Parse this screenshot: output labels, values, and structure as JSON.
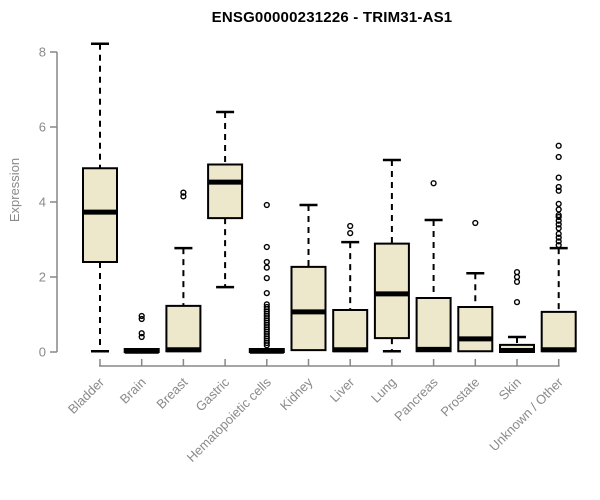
{
  "chart_data": {
    "type": "boxplot",
    "title": "ENSG00000231226 - TRIM31-AS1",
    "ylabel": "Expression",
    "xlabel": "",
    "ylim": [
      0,
      8
    ],
    "yticks": [
      0,
      2,
      4,
      6,
      8
    ],
    "grid": false,
    "legend": false,
    "categories": [
      "Bladder",
      "Brain",
      "Breast",
      "Gastric",
      "Hematopoietic cells",
      "Kidney",
      "Liver",
      "Lung",
      "Pancreas",
      "Prostate",
      "Skin",
      "Unknown / Other"
    ],
    "boxes": [
      {
        "category": "Bladder",
        "low": 0.02,
        "q1": 2.4,
        "median": 3.73,
        "q3": 4.9,
        "high": 8.22,
        "outliers": []
      },
      {
        "category": "Brain",
        "low": 0.0,
        "q1": 0.0,
        "median": 0.02,
        "q3": 0.08,
        "high": 0.1,
        "outliers": [
          0.4,
          0.5,
          0.88,
          0.96
        ]
      },
      {
        "category": "Breast",
        "low": 0.02,
        "q1": 0.02,
        "median": 0.06,
        "q3": 1.23,
        "high": 2.77,
        "outliers": [
          4.15,
          4.25
        ]
      },
      {
        "category": "Gastric",
        "low": 1.73,
        "q1": 3.57,
        "median": 4.53,
        "q3": 5.0,
        "high": 6.4,
        "outliers": []
      },
      {
        "category": "Hematopoietic cells",
        "low": 0.0,
        "q1": 0.0,
        "median": 0.02,
        "q3": 0.08,
        "high": 0.12,
        "outliers": [
          0.18,
          0.24,
          0.3,
          0.36,
          0.42,
          0.48,
          0.54,
          0.6,
          0.66,
          0.72,
          0.78,
          0.84,
          0.9,
          0.96,
          1.02,
          1.08,
          1.14,
          1.2,
          1.27,
          1.57,
          1.97,
          2.25,
          2.4,
          2.8,
          3.92
        ]
      },
      {
        "category": "Kidney",
        "low": 0.02,
        "q1": 0.05,
        "median": 1.07,
        "q3": 2.27,
        "high": 3.92,
        "outliers": []
      },
      {
        "category": "Liver",
        "low": 0.02,
        "q1": 0.02,
        "median": 0.06,
        "q3": 1.12,
        "high": 2.93,
        "outliers": [
          3.17,
          3.36
        ]
      },
      {
        "category": "Lung",
        "low": 0.02,
        "q1": 0.37,
        "median": 1.55,
        "q3": 2.89,
        "high": 5.12,
        "outliers": []
      },
      {
        "category": "Pancreas",
        "low": 0.02,
        "q1": 0.02,
        "median": 0.07,
        "q3": 1.44,
        "high": 3.52,
        "outliers": [
          4.5
        ]
      },
      {
        "category": "Prostate",
        "low": 0.02,
        "q1": 0.02,
        "median": 0.35,
        "q3": 1.2,
        "high": 2.1,
        "outliers": [
          3.44
        ]
      },
      {
        "category": "Skin",
        "low": 0.0,
        "q1": 0.0,
        "median": 0.04,
        "q3": 0.19,
        "high": 0.4,
        "outliers": [
          1.33,
          1.87,
          2.0,
          2.13
        ]
      },
      {
        "category": "Unknown / Other",
        "low": 0.02,
        "q1": 0.02,
        "median": 0.06,
        "q3": 1.07,
        "high": 2.77,
        "outliers": [
          2.85,
          2.95,
          3.05,
          3.15,
          3.3,
          3.4,
          3.5,
          3.6,
          3.65,
          3.8,
          3.95,
          4.3,
          4.4,
          4.65,
          5.2,
          5.5
        ]
      }
    ],
    "colors": {
      "box_fill": "#EDE7CC",
      "box_border": "#000000",
      "median": "#000000",
      "whisker": "#000000",
      "outlier": "#000000",
      "axis": "#878787",
      "tick_label": "#8a8a8a",
      "title": "#000000",
      "background": "#ffffff"
    }
  }
}
